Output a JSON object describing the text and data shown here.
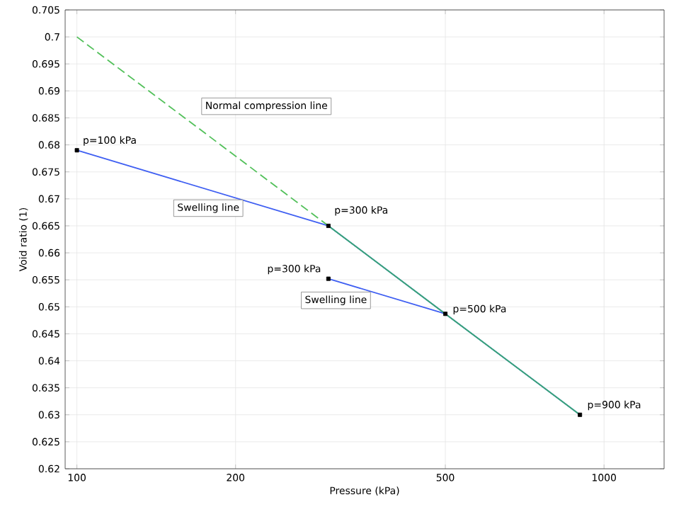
{
  "chart_data": {
    "type": "line",
    "xlabel": "Pressure (kPa)",
    "ylabel": "Void ratio (1)",
    "log": "x",
    "grid": true,
    "xlim": [
      95,
      1300
    ],
    "xticks": [
      100,
      200,
      500,
      1000
    ],
    "ylim": [
      0.62,
      0.705
    ],
    "yticks": [
      0.62,
      0.625,
      0.63,
      0.635,
      0.64,
      0.645,
      0.65,
      0.655,
      0.66,
      0.665,
      0.67,
      0.675,
      0.68,
      0.685,
      0.69,
      0.695,
      0.7,
      0.705
    ],
    "series": [
      {
        "color": "#3f5ff2",
        "line_style": "solid",
        "marker": "none",
        "x": [
          100,
          300,
          500,
          300,
          500,
          900
        ],
        "values": [
          0.679,
          0.665,
          0.6487,
          0.6552,
          0.6487,
          0.63
        ]
      },
      {
        "color": "#52c05a",
        "line_style": "dashed",
        "marker": "none",
        "x": [
          100,
          300
        ],
        "values": [
          0.7,
          0.665
        ]
      },
      {
        "color": "#3aa872",
        "line_style": "solid",
        "marker": "none",
        "x": [
          300,
          500,
          900
        ],
        "values": [
          0.665,
          0.6487,
          0.63
        ]
      },
      {
        "type": "scatter",
        "color": "#000000",
        "marker": "square",
        "x": [
          100,
          300,
          300,
          500,
          900
        ],
        "values": [
          0.679,
          0.665,
          0.6552,
          0.6487,
          0.63
        ]
      }
    ],
    "annotations": [
      "Normal compression line",
      "Swelling line",
      "Swelling line",
      {
        "text": "p=100 kPa",
        "x": 100,
        "y": 0.679
      },
      {
        "text": "p=300 kPa",
        "x": 300,
        "y": 0.665
      },
      {
        "text": "p=300 kPa",
        "x": 300,
        "y": 0.6552
      },
      {
        "text": "p=500 kPa",
        "x": 500,
        "y": 0.6487
      },
      {
        "text": "p=900 kPa",
        "x": 900,
        "y": 0.63
      }
    ]
  }
}
